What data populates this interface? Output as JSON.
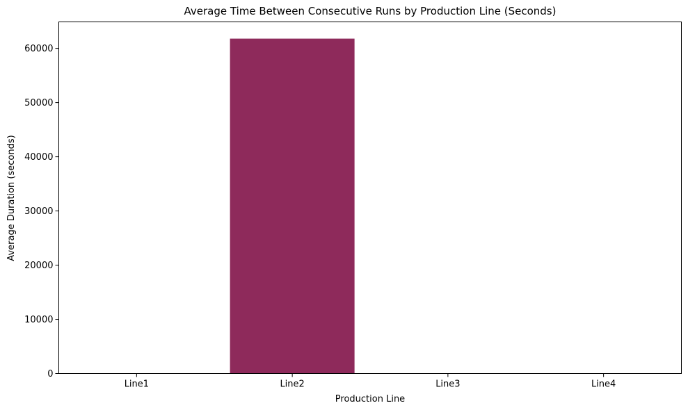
{
  "chart_data": {
    "type": "bar",
    "title": "Average Time Between Consecutive Runs by Production Line (Seconds)",
    "xlabel": "Production Line",
    "ylabel": "Average Duration (seconds)",
    "categories": [
      "Line1",
      "Line2",
      "Line3",
      "Line4"
    ],
    "values": [
      0,
      61800,
      0,
      0
    ],
    "ylim": [
      0,
      64890
    ],
    "yticks": [
      0,
      10000,
      20000,
      30000,
      40000,
      50000,
      60000
    ],
    "bar_color": "#8e2a5b",
    "grid": false,
    "legend": "none"
  }
}
